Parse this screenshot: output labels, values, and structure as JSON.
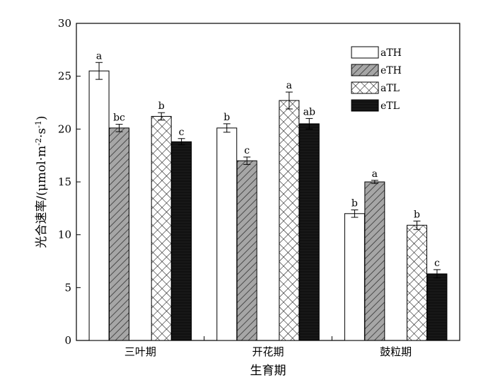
{
  "chart_data": {
    "type": "bar",
    "title": "",
    "xlabel": "生育期",
    "ylabel_main": "光合速率/(μmol·m",
    "ylabel_sup1": "-2",
    "ylabel_mid": "·s",
    "ylabel_sup2": "-1",
    "ylabel_end": ")",
    "ylim": [
      0,
      30
    ],
    "yticks": [
      "0",
      "5",
      "10",
      "15",
      "20",
      "25",
      "30"
    ],
    "categories": [
      "三叶期",
      "开花期",
      "鼓粒期"
    ],
    "legend_position": "top-right",
    "series": [
      {
        "name": "aTH",
        "fill": "#ffffff",
        "pattern": "none",
        "values": [
          25.5,
          20.1,
          12.0
        ],
        "errors": [
          0.8,
          0.4,
          0.35
        ],
        "sig": [
          "a",
          "b",
          "b"
        ]
      },
      {
        "name": "eTH",
        "fill": "#a6a6a6",
        "pattern": "diagonal",
        "values": [
          20.1,
          17.0,
          15.0
        ],
        "errors": [
          0.35,
          0.35,
          0.15
        ],
        "sig": [
          "bc",
          "c",
          "a"
        ]
      },
      {
        "name": "aTL",
        "fill": "#ffffff",
        "pattern": "crosshatch",
        "values": [
          21.2,
          22.7,
          10.9
        ],
        "errors": [
          0.35,
          0.8,
          0.4
        ],
        "sig": [
          "b",
          "a",
          "b"
        ]
      },
      {
        "name": "eTL",
        "fill": "#111111",
        "pattern": "solid",
        "values": [
          18.8,
          20.5,
          6.3
        ],
        "errors": [
          0.3,
          0.5,
          0.4
        ],
        "sig": [
          "c",
          "ab",
          "c"
        ]
      }
    ]
  }
}
